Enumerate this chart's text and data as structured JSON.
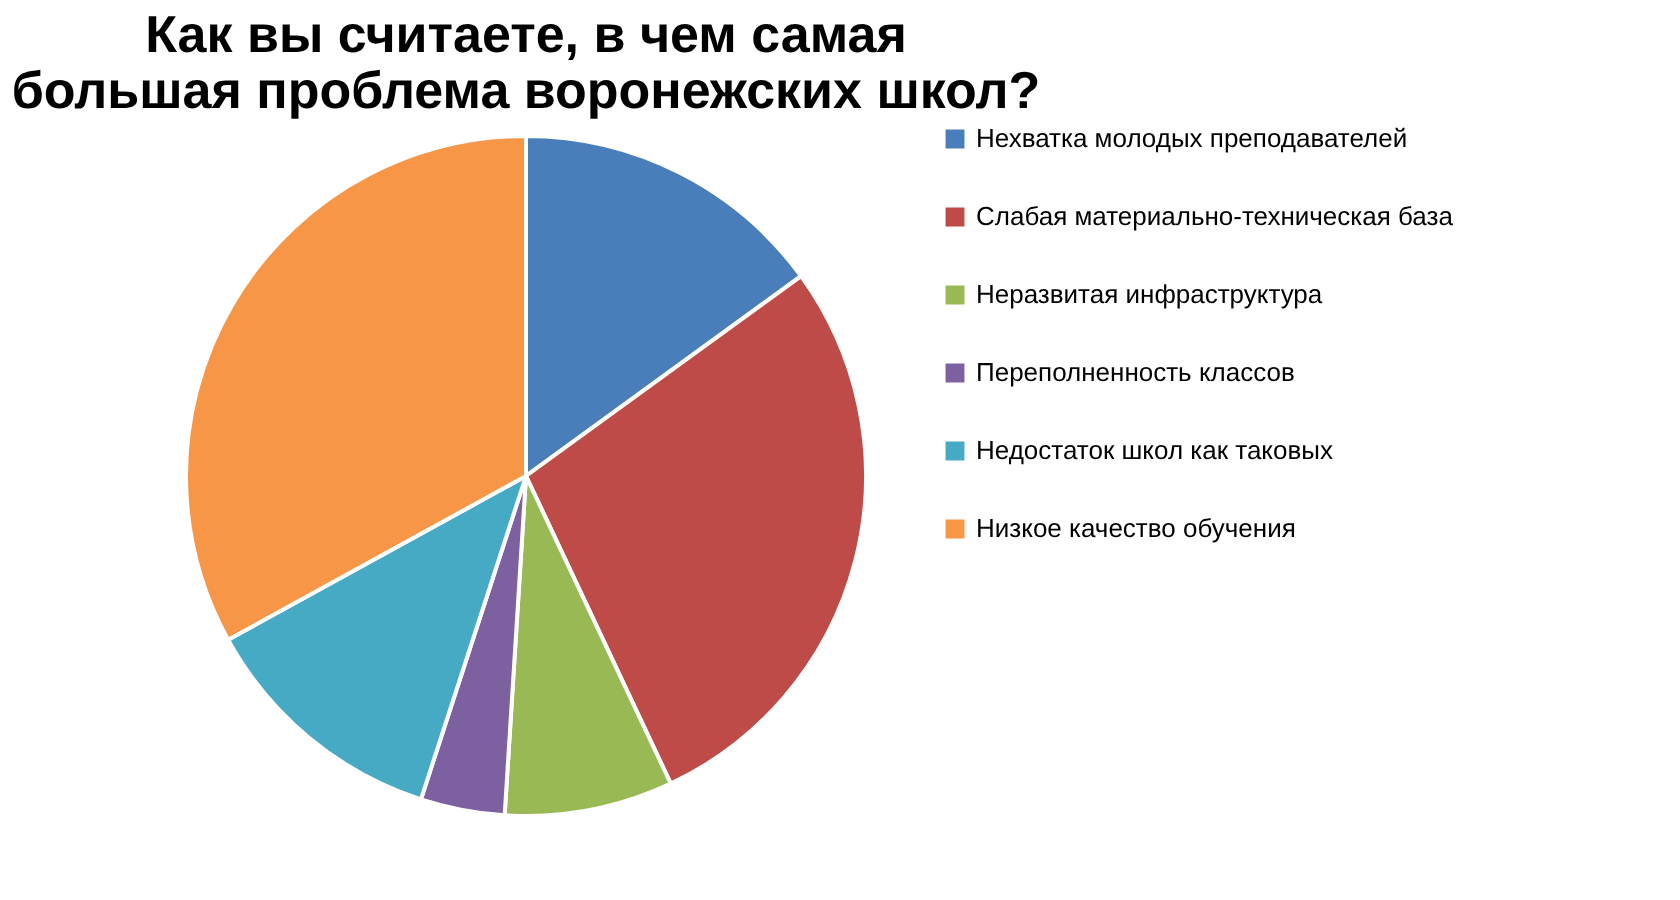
{
  "chart_data": {
    "type": "pie",
    "title": "Как вы считаете, в чем самая большая проблема воронежских школ?",
    "categories": [
      "Нехватка молодых преподавателей",
      "Слабая материально-техническая база",
      "Неразвитая инфраструктура",
      "Переполненность классов",
      "Недостаток школ как таковых",
      "Низкое качество обучения"
    ],
    "values": [
      15,
      28,
      8,
      4,
      12,
      33
    ],
    "colors": [
      "#4a7ebb",
      "#be4b48",
      "#98b954",
      "#7d60a0",
      "#46aac5",
      "#f79646"
    ],
    "legend": "right"
  }
}
